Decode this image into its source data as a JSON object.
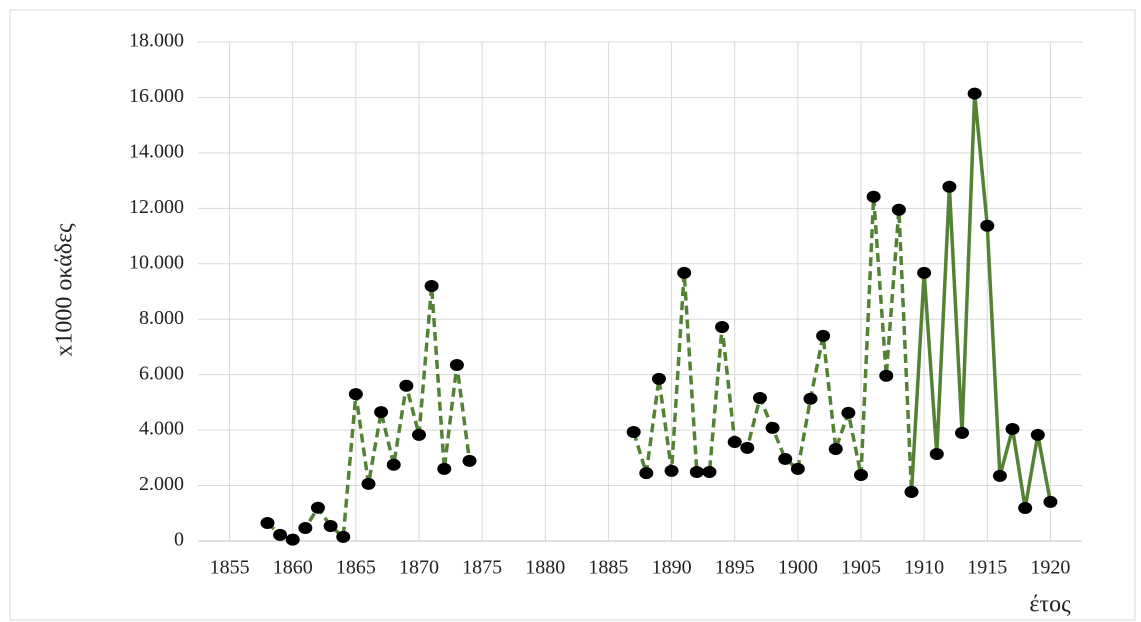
{
  "chart_data": {
    "type": "line",
    "ylabel": "x1000 οκάδες",
    "xlabel": "έτος",
    "xlim": [
      1852.5,
      1922.5
    ],
    "xticks": [
      1855,
      1860,
      1865,
      1870,
      1875,
      1880,
      1885,
      1890,
      1895,
      1900,
      1905,
      1910,
      1915,
      1920
    ],
    "ylim": [
      0,
      18000
    ],
    "yticks": [
      {
        "value": 0,
        "label": "0"
      },
      {
        "value": 2000,
        "label": "2.000"
      },
      {
        "value": 4000,
        "label": "4.000"
      },
      {
        "value": 6000,
        "label": "6.000"
      },
      {
        "value": 8000,
        "label": "8.000"
      },
      {
        "value": 10000,
        "label": "10.000"
      },
      {
        "value": 12000,
        "label": "12.000"
      },
      {
        "value": 14000,
        "label": "14.000"
      },
      {
        "value": 16000,
        "label": "16.000"
      },
      {
        "value": 18000,
        "label": "18.000"
      }
    ],
    "grid": true,
    "marker_color": "#000000",
    "series": [
      {
        "color": "#548235",
        "dashed": true,
        "x": [
          1858,
          1859,
          1860,
          1861,
          1862,
          1863,
          1864,
          1865,
          1866,
          1867,
          1868,
          1869,
          1870,
          1871,
          1872,
          1873,
          1874,
          1875,
          1876,
          1877,
          1878,
          1879,
          1880,
          1881,
          1882,
          1883,
          1884,
          1885,
          1886,
          1887,
          1888,
          1889,
          1890,
          1891,
          1892,
          1893,
          1894,
          1895,
          1896,
          1897,
          1898,
          1899,
          1900,
          1901,
          1902,
          1903,
          1904,
          1905,
          1906,
          1907,
          1908,
          1909
        ],
        "values": [
          650,
          220,
          50,
          470,
          1200,
          540,
          150,
          5300,
          2060,
          4650,
          2750,
          5600,
          3830,
          9200,
          2600,
          6350,
          2890,
          null,
          null,
          null,
          null,
          null,
          null,
          null,
          null,
          null,
          null,
          null,
          null,
          3930,
          2450,
          5850,
          2530,
          9670,
          2490,
          2490,
          7720,
          3570,
          3360,
          5160,
          4080,
          2960,
          2600,
          5130,
          7400,
          3320,
          4620,
          2380,
          12420,
          5960,
          11950,
          1770
        ]
      },
      {
        "color": "#548235",
        "dashed": false,
        "x": [
          1909,
          1910,
          1911,
          1912,
          1913,
          1914,
          1915,
          1916,
          1917,
          1918,
          1919,
          1920
        ],
        "values": [
          1770,
          9670,
          3140,
          12780,
          3900,
          16140,
          11370,
          2350,
          4040,
          1190,
          3830,
          1410
        ]
      }
    ]
  }
}
